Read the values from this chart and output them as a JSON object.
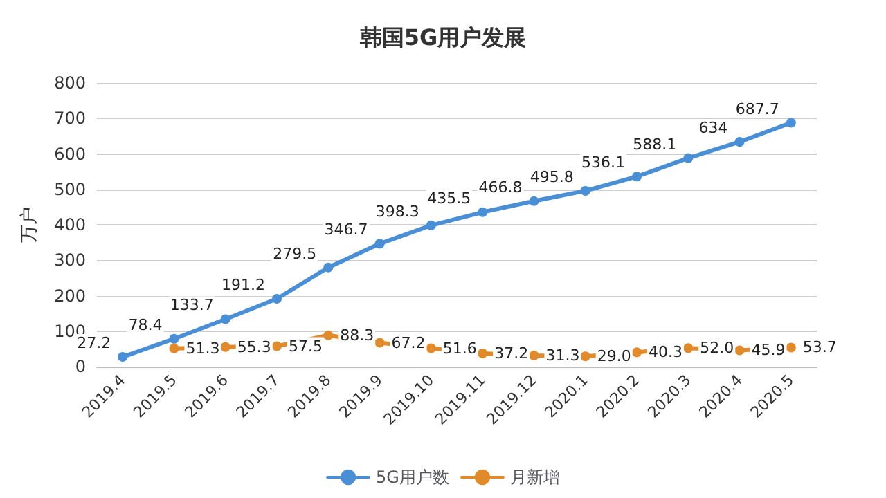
{
  "chart_data": {
    "type": "line",
    "title": "韩国5G用户发展",
    "ylabel": "万户",
    "categories": [
      "2019.4",
      "2019.5",
      "2019.6",
      "2019.7",
      "2019.8",
      "2019.9",
      "2019.10",
      "2019.11",
      "2019.12",
      "2020.1",
      "2020.2",
      "2020.3",
      "2020.4",
      "2020.5"
    ],
    "series": [
      {
        "name": "5G用户数",
        "color": "#4a8fd6",
        "values": [
          27.2,
          78.4,
          133.7,
          191.2,
          279.5,
          346.7,
          398.3,
          435.5,
          466.8,
          495.8,
          536.1,
          588.1,
          634,
          687.7
        ],
        "value_labels": [
          "27.2",
          "78.4",
          "133.7",
          "191.2",
          "279.5",
          "346.7",
          "398.3",
          "435.5",
          "466.8",
          "495.8",
          "536.1",
          "588.1",
          "634",
          "687.7"
        ]
      },
      {
        "name": "月新增",
        "color": "#e08a2c",
        "values": [
          null,
          51.3,
          55.3,
          57.5,
          88.3,
          67.2,
          51.6,
          37.2,
          31.3,
          29.0,
          40.3,
          52.0,
          45.9,
          53.7
        ],
        "value_labels": [
          null,
          "51.3",
          "55.3",
          "57.5",
          "88.3",
          "67.2",
          "51.6",
          "37.2",
          "31.3",
          "29.0",
          "40.3",
          "52.0",
          "45.9",
          "53.7"
        ]
      }
    ],
    "ylim": [
      0,
      800
    ],
    "yticks": [
      0,
      100,
      200,
      300,
      400,
      500,
      600,
      700,
      800
    ],
    "grid": "y",
    "legend": "bottom",
    "marker": "circle",
    "line_style": "solid"
  }
}
